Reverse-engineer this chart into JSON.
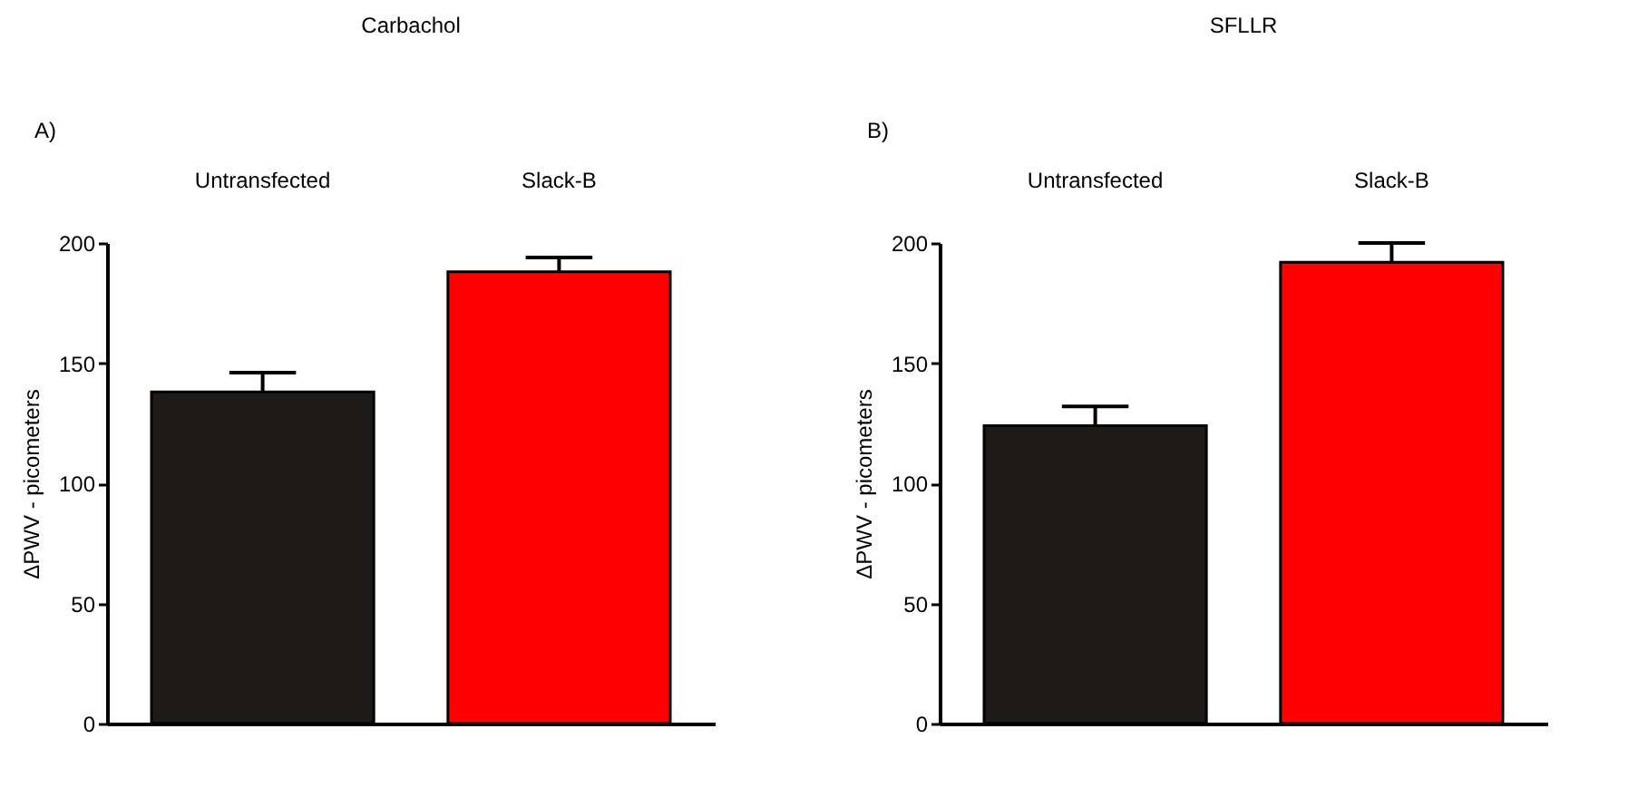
{
  "chart_data": [
    {
      "type": "bar",
      "title": "Carbachol",
      "annotations": [
        "A)"
      ],
      "categories": [
        "Untransfected",
        "Slack-B"
      ],
      "values": [
        138,
        188
      ],
      "colors": [
        "#1e1a17",
        "#ff0000"
      ],
      "errors": [
        [
          138,
          146
        ],
        [
          188,
          194
        ]
      ],
      "ylabel": "ΔPWV - picometers",
      "ylim": [
        0,
        200
      ],
      "yticks": [
        0,
        50,
        100,
        150,
        200
      ],
      "grid": false
    },
    {
      "type": "bar",
      "title": "SFLLR",
      "annotations": [
        "B)"
      ],
      "categories": [
        "Untransfected",
        "Slack-B"
      ],
      "values": [
        124,
        192
      ],
      "colors": [
        "#1e1a17",
        "#ff0000"
      ],
      "errors": [
        [
          124,
          132
        ],
        [
          192,
          200
        ]
      ],
      "ylabel": "ΔPWV - picometers",
      "ylim": [
        0,
        200
      ],
      "yticks": [
        0,
        50,
        100,
        150,
        200
      ],
      "grid": false
    }
  ]
}
